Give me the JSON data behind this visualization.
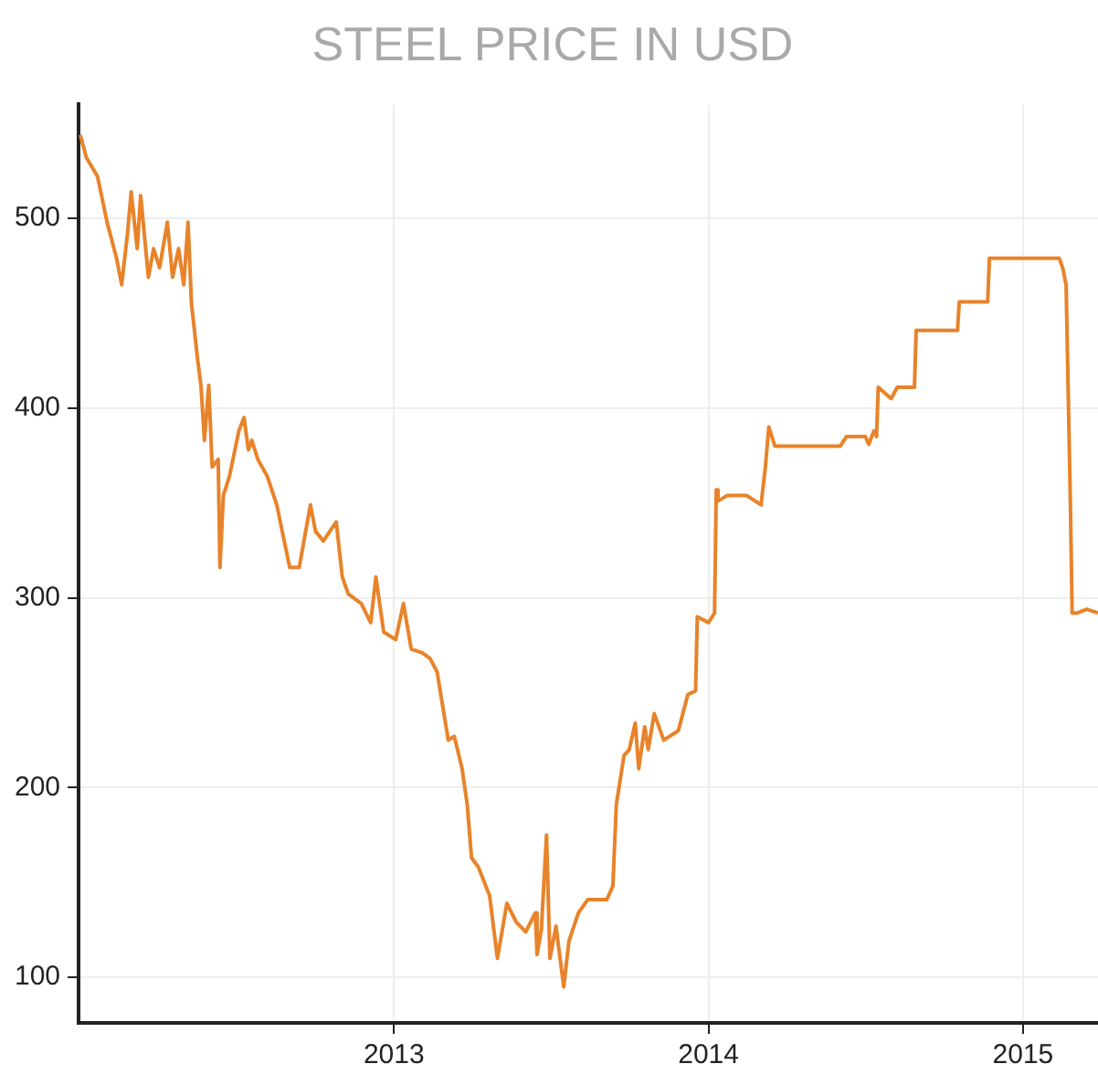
{
  "chart_data": {
    "type": "line",
    "title": "STEEL PRICE IN USD",
    "x": [
      "2012-01-03",
      "2012-01-10",
      "2012-01-23",
      "2012-02-03",
      "2012-02-14",
      "2012-02-20",
      "2012-02-27",
      "2012-03-02",
      "2012-03-09",
      "2012-03-13",
      "2012-03-22",
      "2012-03-28",
      "2012-04-04",
      "2012-04-13",
      "2012-04-19",
      "2012-04-26",
      "2012-05-02",
      "2012-05-07",
      "2012-05-11",
      "2012-05-18",
      "2012-05-22",
      "2012-05-26",
      "2012-05-31",
      "2012-06-04",
      "2012-06-11",
      "2012-06-13",
      "2012-06-17",
      "2012-06-24",
      "2012-07-05",
      "2012-07-11",
      "2012-07-16",
      "2012-07-20",
      "2012-07-27",
      "2012-08-07",
      "2012-08-18",
      "2012-09-02",
      "2012-09-13",
      "2012-09-26",
      "2012-10-02",
      "2012-10-11",
      "2012-10-26",
      "2012-11-02",
      "2012-11-09",
      "2012-11-24",
      "2012-12-05",
      "2012-12-11",
      "2012-12-20",
      "2013-01-03",
      "2013-01-12",
      "2013-01-21",
      "2013-02-03",
      "2013-02-12",
      "2013-02-20",
      "2013-03-05",
      "2013-03-12",
      "2013-03-21",
      "2013-03-27",
      "2013-04-01",
      "2013-04-09",
      "2013-04-22",
      "2013-05-01",
      "2013-05-12",
      "2013-05-23",
      "2013-06-03",
      "2013-06-14",
      "2013-06-16",
      "2013-06-21",
      "2013-06-27",
      "2013-07-01",
      "2013-07-08",
      "2013-07-17",
      "2013-07-23",
      "2013-08-03",
      "2013-08-14",
      "2013-09-05",
      "2013-09-12",
      "2013-09-16",
      "2013-09-25",
      "2013-10-01",
      "2013-10-08",
      "2013-10-12",
      "2013-10-19",
      "2013-10-23",
      "2013-10-30",
      "2013-11-10",
      "2013-11-27",
      "2013-12-08",
      "2013-12-17",
      "2013-12-19",
      "2014-01-01",
      "2014-01-08",
      "2014-01-10",
      "2014-01-12",
      "2014-01-23",
      "2014-02-14",
      "2014-03-03",
      "2014-03-08",
      "2014-03-12",
      "2014-03-19",
      "2014-06-03",
      "2014-06-10",
      "2014-07-02",
      "2014-07-06",
      "2014-07-12",
      "2014-07-15",
      "2014-07-17",
      "2014-08-01",
      "2014-08-08",
      "2014-08-28",
      "2014-08-30",
      "2014-09-23",
      "2014-10-01",
      "2014-10-17",
      "2014-10-19",
      "2014-11-21",
      "2014-11-23",
      "2015-02-12",
      "2015-02-16",
      "2015-02-20",
      "2015-02-25",
      "2015-02-27",
      "2015-03-05",
      "2015-03-16",
      "2015-03-29"
    ],
    "series": [
      {
        "color": "#e8832a",
        "values": [
          544,
          532,
          522,
          498,
          479,
          465,
          493,
          514,
          484,
          512,
          469,
          484,
          474,
          498,
          469,
          484,
          465,
          498,
          455,
          426,
          412,
          383,
          412,
          369,
          373,
          316,
          354,
          364,
          388,
          395,
          378,
          383,
          373,
          364,
          349,
          316,
          316,
          349,
          335,
          330,
          340,
          311,
          302,
          297,
          287,
          311,
          282,
          278,
          297,
          273,
          271,
          268,
          261,
          225,
          227,
          210,
          191,
          163,
          158,
          143,
          110,
          139,
          129,
          124,
          134,
          112,
          125,
          175,
          110,
          127,
          95,
          119,
          134,
          141,
          141,
          148,
          191,
          217,
          220,
          234,
          210,
          232,
          220,
          239,
          225,
          230,
          249,
          251,
          290,
          287,
          292,
          357,
          351,
          354,
          354,
          349,
          369,
          390,
          380,
          380,
          385,
          385,
          381,
          388,
          385,
          411,
          405,
          411,
          411,
          441,
          441,
          441,
          441,
          456,
          456,
          479,
          479,
          474,
          465,
          349,
          292,
          292,
          294,
          292
        ]
      }
    ],
    "xlim": [
      "2012-01-01",
      "2015-03-29"
    ],
    "xticks": [
      {
        "value": "2013-01-01",
        "label": "2013"
      },
      {
        "value": "2014-01-01",
        "label": "2014"
      },
      {
        "value": "2015-01-01",
        "label": "2015"
      }
    ],
    "ylim": [
      76,
      560
    ],
    "yticks": [
      100,
      200,
      300,
      400,
      500
    ],
    "grid": true
  }
}
